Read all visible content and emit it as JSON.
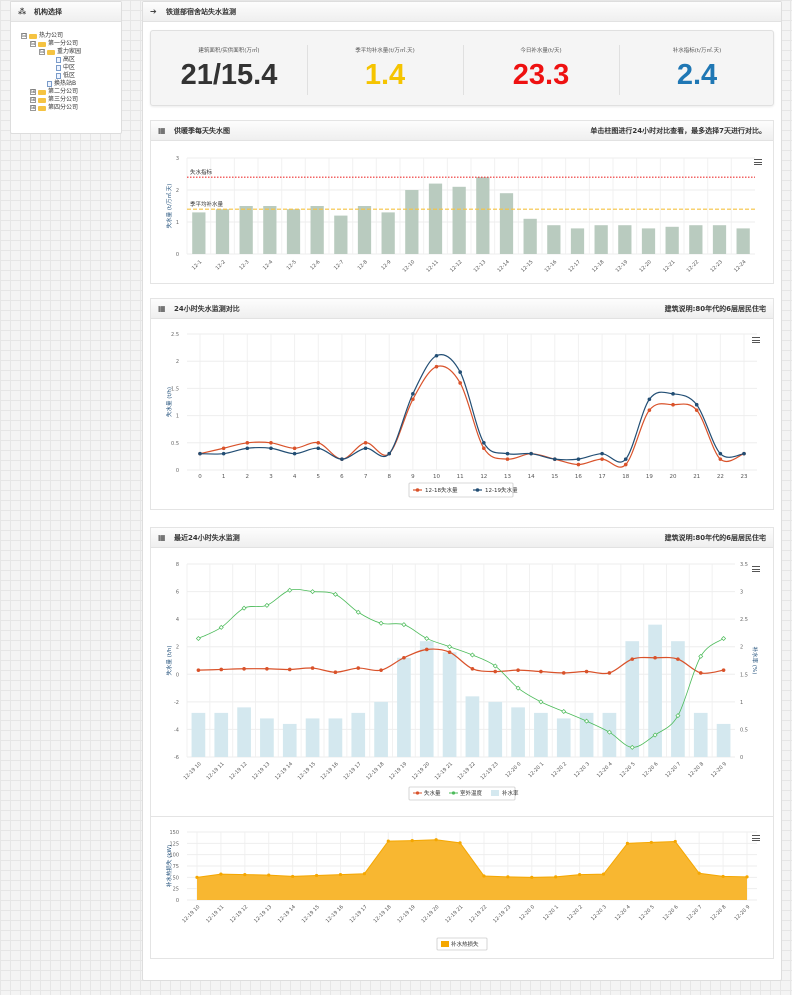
{
  "sidebar": {
    "title": "机构选择",
    "tree": [
      {
        "label": "热力公司",
        "level": 0,
        "type": "folder",
        "toggle": "⊟"
      },
      {
        "label": "第一分公司",
        "level": 1,
        "type": "folder",
        "toggle": "⊟"
      },
      {
        "label": "重力家园",
        "level": 2,
        "type": "folder",
        "toggle": "⊟"
      },
      {
        "label": "高区",
        "level": 3,
        "type": "file",
        "toggle": ""
      },
      {
        "label": "中区",
        "level": 3,
        "type": "file",
        "toggle": ""
      },
      {
        "label": "低区",
        "level": 3,
        "type": "file",
        "toggle": ""
      },
      {
        "label": "换热站B",
        "level": 2,
        "type": "file",
        "toggle": ""
      },
      {
        "label": "第二分公司",
        "level": 1,
        "type": "folder",
        "toggle": "⊞"
      },
      {
        "label": "第三分公司",
        "level": 1,
        "type": "folder",
        "toggle": "⊞"
      },
      {
        "label": "第四分公司",
        "level": 1,
        "type": "folder",
        "toggle": "⊞"
      }
    ]
  },
  "main": {
    "title": "铁道部宿舍站失水监测"
  },
  "kpis": [
    {
      "label": "建筑面积/实供面积(万㎡)",
      "value": "21/15.4",
      "color": "#333333"
    },
    {
      "label": "季平均补水量(t/万㎡.天)",
      "value": "1.4",
      "color": "#f5c400"
    },
    {
      "label": "今日补水量(t/天)",
      "value": "23.3",
      "color": "#ee1111"
    },
    {
      "label": "补水指标(t/万㎡.天)",
      "value": "2.4",
      "color": "#1f77b4"
    }
  ],
  "panel1": {
    "title": "供暖季每天失水图",
    "hint": "单击柱图进行24小时对比查看，最多选择7天进行对比。"
  },
  "panel2": {
    "title": "24小时失水监测对比",
    "hint": "建筑说明:80年代的6层居民住宅"
  },
  "panel3": {
    "title": "最近24小时失水监测",
    "hint": "建筑说明:80年代的6层居民住宅"
  },
  "chart_data": [
    {
      "type": "bar",
      "ylabel": "失水量 (t/万㎡.天)",
      "ylim": [
        0,
        3
      ],
      "categories": [
        "12-1",
        "12-2",
        "12-3",
        "12-4",
        "12-5",
        "12-6",
        "12-7",
        "12-8",
        "12-9",
        "12-10",
        "12-11",
        "12-12",
        "12-13",
        "12-14",
        "12-15",
        "12-16",
        "12-17",
        "12-18",
        "12-19",
        "12-20",
        "12-21",
        "12-22",
        "12-23",
        "12-24"
      ],
      "values": [
        1.3,
        1.4,
        1.5,
        1.5,
        1.4,
        1.5,
        1.2,
        1.5,
        1.3,
        2.0,
        2.2,
        2.1,
        2.4,
        1.9,
        1.1,
        0.9,
        0.8,
        0.9,
        0.9,
        0.8,
        0.85,
        0.9,
        0.9,
        0.8
      ],
      "bar_color": "#b9cbbf",
      "lines": [
        {
          "name": "失水指标",
          "value": 2.4,
          "color": "#ee3333"
        },
        {
          "name": "季平均补水量",
          "value": 1.4,
          "color": "#f5c342"
        }
      ]
    },
    {
      "type": "line",
      "ylabel": "失水量 (t/h)",
      "ylim": [
        0,
        2.5
      ],
      "x": [
        0,
        1,
        2,
        3,
        4,
        5,
        6,
        7,
        8,
        9,
        10,
        11,
        12,
        13,
        14,
        15,
        16,
        17,
        18,
        19,
        20,
        21,
        22,
        23
      ],
      "series": [
        {
          "name": "12-18失水量",
          "color": "#d9522a",
          "values": [
            0.3,
            0.4,
            0.5,
            0.5,
            0.4,
            0.5,
            0.2,
            0.5,
            0.3,
            1.3,
            1.9,
            1.6,
            0.4,
            0.2,
            0.3,
            0.2,
            0.1,
            0.2,
            0.1,
            1.1,
            1.2,
            1.1,
            0.2,
            0.3
          ]
        },
        {
          "name": "12-19失水量",
          "color": "#224e74",
          "values": [
            0.3,
            0.3,
            0.4,
            0.4,
            0.3,
            0.4,
            0.2,
            0.4,
            0.3,
            1.4,
            2.1,
            1.8,
            0.5,
            0.3,
            0.3,
            0.2,
            0.2,
            0.3,
            0.2,
            1.3,
            1.4,
            1.2,
            0.3,
            0.3
          ]
        }
      ]
    },
    {
      "type": "line",
      "ylabel": "失水量 (t/h)",
      "y2label": "补水率 (%)",
      "ylim": [
        -6,
        8
      ],
      "y2lim": [
        0,
        3.5
      ],
      "categories": [
        "12-19 10",
        "12-19 11",
        "12-19 12",
        "12-19 13",
        "12-19 14",
        "12-19 15",
        "12-19 16",
        "12-19 17",
        "12-19 18",
        "12-19 19",
        "12-19 20",
        "12-19 21",
        "12-19 22",
        "12-19 23",
        "12-20 0",
        "12-20 1",
        "12-20 2",
        "12-20 3",
        "12-20 4",
        "12-20 5",
        "12-20 6",
        "12-20 7",
        "12-20 8",
        "12-20 9"
      ],
      "series": [
        {
          "name": "失水量",
          "kind": "line",
          "axis": "left",
          "color": "#d9522a",
          "values": [
            0.3,
            0.35,
            0.4,
            0.4,
            0.35,
            0.45,
            0.15,
            0.45,
            0.3,
            1.2,
            1.8,
            1.6,
            0.4,
            0.2,
            0.3,
            0.2,
            0.1,
            0.2,
            0.1,
            1.1,
            1.2,
            1.1,
            0.1,
            0.3
          ]
        },
        {
          "name": "室外温度",
          "kind": "line",
          "axis": "left",
          "color": "#4cbb5a",
          "values": [
            2.6,
            3.4,
            4.8,
            5.0,
            6.1,
            6.0,
            5.8,
            4.5,
            3.7,
            3.6,
            2.6,
            2.0,
            1.4,
            0.6,
            -1.0,
            -2.0,
            -2.7,
            -3.4,
            -4.2,
            -5.3,
            -4.4,
            -3.0,
            1.3,
            2.6
          ]
        },
        {
          "name": "补水率",
          "kind": "bar",
          "axis": "right",
          "color": "#d4e8ef",
          "values": [
            0.8,
            0.8,
            0.9,
            0.7,
            0.6,
            0.7,
            0.7,
            0.8,
            1.0,
            1.8,
            2.1,
            1.9,
            1.1,
            1.0,
            0.9,
            0.8,
            0.7,
            0.8,
            0.8,
            2.1,
            2.4,
            2.1,
            0.8,
            0.6
          ]
        }
      ]
    },
    {
      "type": "area",
      "ylabel": "补水热损失 (kW)",
      "ylim": [
        0,
        150
      ],
      "categories": [
        "12-19 10",
        "12-19 11",
        "12-19 12",
        "12-19 13",
        "12-19 14",
        "12-19 15",
        "12-19 16",
        "12-19 17",
        "12-19 18",
        "12-19 19",
        "12-19 20",
        "12-19 21",
        "12-19 22",
        "12-19 23",
        "12-20 0",
        "12-20 1",
        "12-20 2",
        "12-20 3",
        "12-20 4",
        "12-20 5",
        "12-20 6",
        "12-20 7",
        "12-20 8",
        "12-20 9"
      ],
      "series": [
        {
          "name": "补水热损失",
          "color": "#f5a700",
          "values": [
            50,
            57,
            56,
            55,
            52,
            54,
            56,
            58,
            130,
            131,
            133,
            126,
            53,
            51,
            50,
            51,
            56,
            57,
            125,
            127,
            129,
            59,
            52,
            51
          ]
        }
      ]
    }
  ]
}
